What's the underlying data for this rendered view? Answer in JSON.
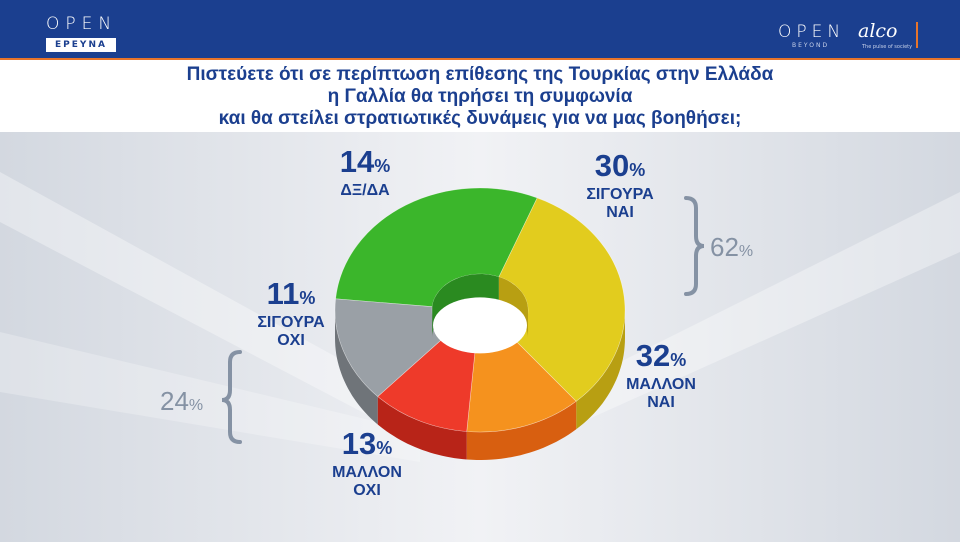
{
  "header": {
    "left_logo": "OPEN",
    "left_logo_sub": "ΕΡΕΥΝΑ",
    "right_logo": "OPEN",
    "right_logo_sub": "BEYOND",
    "partner_logo": "alco",
    "partner_logo_sub": "The pulse of society"
  },
  "colors": {
    "header_bg": "#1b3f8f",
    "accent": "#e8742a",
    "text": "#1b3f8f",
    "bracket": "#8592a4"
  },
  "chart_data": {
    "type": "pie",
    "style": "3d-donut",
    "title": "Πιστεύετε ότι σε περίπτωση επίθεσης της Τουρκίας στην Ελλάδα η Γαλλία θα τηρήσει τη συμφωνία και θα στείλει στρατιωτικές δυνάμεις για να μας βοηθήσει;",
    "title_lines": [
      "Πιστεύετε ότι σε περίπτωση επίθεσης της Τουρκίας στην Ελλάδα",
      "η Γαλλία θα τηρήσει τη συμφωνία",
      "και θα στείλει στρατιωτικές δυνάμεις για να μας βοηθήσει;"
    ],
    "unit": "%",
    "slices": [
      {
        "label": "ΣΙΓΟΥΡΑ ΝΑΙ",
        "label_lines": [
          "ΣΙΓΟΥΡΑ",
          "ΝΑΙ"
        ],
        "value": 30,
        "color": "#3bb62b",
        "side": "#2a8a20"
      },
      {
        "label": "ΜΑΛΛΟΝ ΝΑΙ",
        "label_lines": [
          "ΜΑΛΛΟΝ",
          "ΝΑΙ"
        ],
        "value": 32,
        "color": "#e2cc1e",
        "side": "#b89f12"
      },
      {
        "label": "ΜΑΛΛΟΝ ΟΧΙ",
        "label_lines": [
          "ΜΑΛΛΟΝ",
          "ΟΧΙ"
        ],
        "value": 13,
        "color": "#f5921e",
        "side": "#d85f10"
      },
      {
        "label": "ΣΙΓΟΥΡΑ ΟΧΙ",
        "label_lines": [
          "ΣΙΓΟΥΡΑ",
          "ΟΧΙ"
        ],
        "value": 11,
        "color": "#ee3a2a",
        "side": "#b82418"
      },
      {
        "label": "ΔΞ/ΔΑ",
        "label_lines": [
          "ΔΞ/ΔΑ"
        ],
        "value": 14,
        "color": "#9aa0a6",
        "side": "#6f7479"
      }
    ],
    "groups": [
      {
        "value": 62,
        "unit": "%"
      },
      {
        "value": 24,
        "unit": "%"
      }
    ]
  }
}
